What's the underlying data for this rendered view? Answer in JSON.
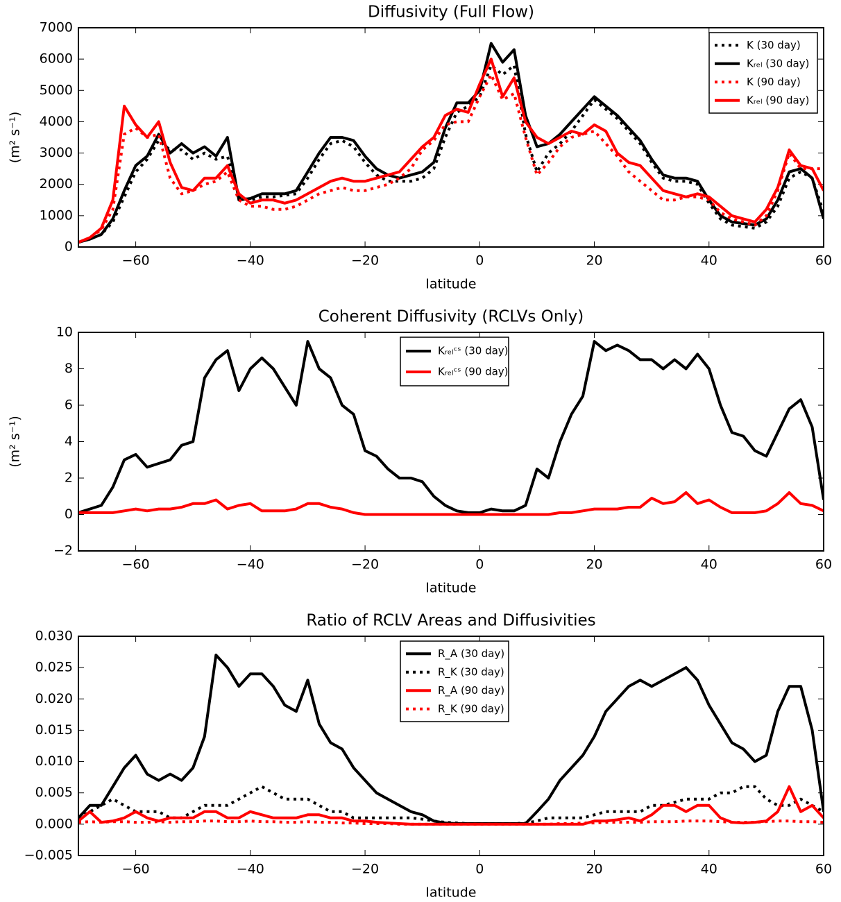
{
  "chart_data": [
    {
      "type": "line",
      "title": "Diffusivity (Full Flow)",
      "xlabel": "latitude",
      "ylabel": "(m² s⁻¹)",
      "legend": "upper right",
      "xlim": [
        -70,
        60
      ],
      "xticks": [
        {
          "value": -60,
          "label": "−60"
        },
        {
          "value": -40,
          "label": "−40"
        },
        {
          "value": -20,
          "label": "−20"
        },
        0,
        20,
        40,
        60
      ],
      "ylim": [
        0,
        7000
      ],
      "yticks": [
        0,
        1000,
        2000,
        3000,
        4000,
        5000,
        6000,
        7000
      ],
      "x": [
        -70,
        -68,
        -66,
        -64,
        -62,
        -60,
        -58,
        -56,
        -54,
        -52,
        -50,
        -48,
        -46,
        -44,
        -42,
        -40,
        -38,
        -36,
        -34,
        -32,
        -30,
        -28,
        -26,
        -24,
        -22,
        -20,
        -18,
        -16,
        -14,
        -12,
        -10,
        -8,
        -6,
        -4,
        -2,
        0,
        2,
        4,
        6,
        8,
        10,
        12,
        14,
        16,
        18,
        20,
        22,
        24,
        26,
        28,
        30,
        32,
        34,
        36,
        38,
        40,
        42,
        44,
        46,
        48,
        50,
        52,
        54,
        56,
        58,
        60
      ],
      "series": [
        {
          "name": "K (30 day)",
          "color": "#000000",
          "linestyle": "dotted",
          "values": [
            150,
            250,
            400,
            800,
            1600,
            2400,
            2800,
            3400,
            3100,
            3100,
            2800,
            3000,
            2800,
            2900,
            1600,
            1500,
            1600,
            1600,
            1650,
            1700,
            2200,
            2800,
            3300,
            3400,
            3200,
            2700,
            2300,
            2100,
            2100,
            2100,
            2200,
            2500,
            3500,
            4300,
            4500,
            4800,
            5800,
            5500,
            5800,
            3600,
            2400,
            3000,
            3300,
            3700,
            4200,
            4700,
            4400,
            4100,
            3700,
            3300,
            2700,
            2200,
            2100,
            2100,
            2000,
            1400,
            900,
            700,
            650,
            600,
            800,
            1300,
            2200,
            2400,
            2200,
            1100
          ]
        },
        {
          "name": "Kᵣₑₗ (30 day)",
          "color": "#000000",
          "linestyle": "solid",
          "values": [
            150,
            250,
            400,
            900,
            1800,
            2600,
            2900,
            3600,
            3000,
            3300,
            3000,
            3200,
            2900,
            3500,
            1500,
            1550,
            1700,
            1700,
            1700,
            1800,
            2400,
            3000,
            3500,
            3500,
            3400,
            2900,
            2500,
            2300,
            2200,
            2300,
            2400,
            2700,
            3800,
            4600,
            4600,
            5000,
            6500,
            5900,
            6300,
            4200,
            3200,
            3300,
            3600,
            4000,
            4400,
            4800,
            4500,
            4200,
            3800,
            3400,
            2800,
            2300,
            2200,
            2200,
            2100,
            1500,
            1000,
            800,
            750,
            700,
            900,
            1500,
            2400,
            2500,
            2200,
            900
          ]
        },
        {
          "name": "K (90 day)",
          "color": "#ff0000",
          "linestyle": "dotted",
          "values": [
            150,
            300,
            550,
            1200,
            3600,
            3800,
            3500,
            3600,
            2200,
            1700,
            1800,
            2000,
            2100,
            2400,
            1500,
            1300,
            1300,
            1200,
            1200,
            1300,
            1500,
            1700,
            1800,
            1900,
            1800,
            1800,
            1900,
            2000,
            2200,
            2500,
            3100,
            3400,
            3900,
            4000,
            4000,
            4800,
            5500,
            4700,
            4900,
            3500,
            2300,
            2700,
            3200,
            3500,
            3600,
            3700,
            3300,
            2900,
            2400,
            2100,
            1800,
            1500,
            1500,
            1600,
            1600,
            1500,
            1100,
            900,
            800,
            700,
            1000,
            1800,
            3000,
            2500,
            2500,
            2500
          ]
        },
        {
          "name": "Kᵣₑₗ (90 day)",
          "color": "#ff0000",
          "linestyle": "solid",
          "values": [
            150,
            300,
            600,
            1500,
            4500,
            3900,
            3500,
            4000,
            2700,
            1900,
            1800,
            2200,
            2200,
            2600,
            1700,
            1400,
            1500,
            1500,
            1400,
            1500,
            1700,
            1900,
            2100,
            2200,
            2100,
            2100,
            2200,
            2300,
            2400,
            2800,
            3200,
            3500,
            4200,
            4400,
            4300,
            5200,
            6000,
            4800,
            5400,
            4000,
            3500,
            3300,
            3500,
            3700,
            3600,
            3900,
            3700,
            3000,
            2700,
            2600,
            2200,
            1800,
            1700,
            1600,
            1700,
            1600,
            1300,
            1000,
            900,
            800,
            1200,
            1900,
            3100,
            2600,
            2500,
            1800
          ]
        }
      ]
    },
    {
      "type": "line",
      "title": "Coherent Diffusivity (RCLVs Only)",
      "xlabel": "latitude",
      "ylabel": "(m² s⁻¹)",
      "legend": "upper center",
      "xlim": [
        -70,
        60
      ],
      "xticks": [
        {
          "value": -60,
          "label": "−60"
        },
        {
          "value": -40,
          "label": "−40"
        },
        {
          "value": -20,
          "label": "−20"
        },
        0,
        20,
        40,
        60
      ],
      "ylim": [
        -2,
        10
      ],
      "yticks": [
        {
          "value": -2,
          "label": "−2"
        },
        0,
        2,
        4,
        6,
        8,
        10
      ],
      "x": [
        -70,
        -68,
        -66,
        -64,
        -62,
        -60,
        -58,
        -56,
        -54,
        -52,
        -50,
        -48,
        -46,
        -44,
        -42,
        -40,
        -38,
        -36,
        -34,
        -32,
        -30,
        -28,
        -26,
        -24,
        -22,
        -20,
        -18,
        -16,
        -14,
        -12,
        -10,
        -8,
        -6,
        -4,
        -2,
        0,
        2,
        4,
        6,
        8,
        10,
        12,
        14,
        16,
        18,
        20,
        22,
        24,
        26,
        28,
        30,
        32,
        34,
        36,
        38,
        40,
        42,
        44,
        46,
        48,
        50,
        52,
        54,
        56,
        58,
        60
      ],
      "series": [
        {
          "name": "Kᵣₑₗᶜˢ (30 day)",
          "color": "#000000",
          "linestyle": "solid",
          "values": [
            0.1,
            0.3,
            0.5,
            1.5,
            3.0,
            3.3,
            2.6,
            2.8,
            3.0,
            3.8,
            4.0,
            7.5,
            8.5,
            9.0,
            6.8,
            8.0,
            8.6,
            8.0,
            7.0,
            6.0,
            9.5,
            8.0,
            7.5,
            6.0,
            5.5,
            3.5,
            3.2,
            2.5,
            2.0,
            2.0,
            1.8,
            1.0,
            0.5,
            0.2,
            0.1,
            0.1,
            0.3,
            0.2,
            0.2,
            0.5,
            2.5,
            2.0,
            4.0,
            5.5,
            6.5,
            9.5,
            9.0,
            9.3,
            9.0,
            8.5,
            8.5,
            8.0,
            8.5,
            8.0,
            8.8,
            8.0,
            6.0,
            4.5,
            4.3,
            3.5,
            3.2,
            4.5,
            5.8,
            6.3,
            4.8,
            0.8
          ]
        },
        {
          "name": "Kᵣₑₗᶜˢ (90 day)",
          "color": "#ff0000",
          "linestyle": "solid",
          "values": [
            0.1,
            0.1,
            0.1,
            0.1,
            0.2,
            0.3,
            0.2,
            0.3,
            0.3,
            0.4,
            0.6,
            0.6,
            0.8,
            0.3,
            0.5,
            0.6,
            0.2,
            0.2,
            0.2,
            0.3,
            0.6,
            0.6,
            0.4,
            0.3,
            0.1,
            0,
            0,
            0,
            0,
            0,
            0,
            0,
            0,
            0,
            0,
            0,
            0,
            0,
            0,
            0,
            0,
            0,
            0.1,
            0.1,
            0.2,
            0.3,
            0.3,
            0.3,
            0.4,
            0.4,
            0.9,
            0.6,
            0.7,
            1.2,
            0.6,
            0.8,
            0.4,
            0.1,
            0.1,
            0.1,
            0.2,
            0.6,
            1.2,
            0.6,
            0.5,
            0.2
          ]
        }
      ]
    },
    {
      "type": "line",
      "title": "Ratio of RCLV Areas and Diffusivities",
      "xlabel": "latitude",
      "legend": "upper center",
      "xlim": [
        -70,
        60
      ],
      "xticks": [
        {
          "value": -60,
          "label": "−60"
        },
        {
          "value": -40,
          "label": "−40"
        },
        {
          "value": -20,
          "label": "−20"
        },
        0,
        20,
        40,
        60
      ],
      "ylim": [
        -0.005,
        0.03
      ],
      "yticks": [
        {
          "value": -0.005,
          "label": "−0.005"
        },
        {
          "value": 0,
          "label": "0.000"
        },
        {
          "value": 0.005,
          "label": "0.005"
        },
        {
          "value": 0.01,
          "label": "0.010"
        },
        {
          "value": 0.015,
          "label": "0.015"
        },
        {
          "value": 0.02,
          "label": "0.020"
        },
        {
          "value": 0.025,
          "label": "0.025"
        },
        {
          "value": 0.03,
          "label": "0.030"
        }
      ],
      "x": [
        -70,
        -68,
        -66,
        -64,
        -62,
        -60,
        -58,
        -56,
        -54,
        -52,
        -50,
        -48,
        -46,
        -44,
        -42,
        -40,
        -38,
        -36,
        -34,
        -32,
        -30,
        -28,
        -26,
        -24,
        -22,
        -20,
        -18,
        -16,
        -14,
        -12,
        -10,
        -8,
        -6,
        -4,
        -2,
        0,
        2,
        4,
        6,
        8,
        10,
        12,
        14,
        16,
        18,
        20,
        22,
        24,
        26,
        28,
        30,
        32,
        34,
        36,
        38,
        40,
        42,
        44,
        46,
        48,
        50,
        52,
        54,
        56,
        58,
        60
      ],
      "series": [
        {
          "name": "R_A (30 day)",
          "color": "#000000",
          "linestyle": "solid",
          "values": [
            0.001,
            0.003,
            0.003,
            0.006,
            0.009,
            0.011,
            0.008,
            0.007,
            0.008,
            0.007,
            0.009,
            0.014,
            0.027,
            0.025,
            0.022,
            0.024,
            0.024,
            0.022,
            0.019,
            0.018,
            0.023,
            0.016,
            0.013,
            0.012,
            0.009,
            0.007,
            0.005,
            0.004,
            0.003,
            0.002,
            0.0015,
            0.0005,
            0.0002,
            0.0001,
            0.0001,
            0.0001,
            0.0001,
            0.0001,
            0.0001,
            0.0001,
            0.002,
            0.004,
            0.007,
            0.009,
            0.011,
            0.014,
            0.018,
            0.02,
            0.022,
            0.023,
            0.022,
            0.023,
            0.024,
            0.025,
            0.023,
            0.019,
            0.016,
            0.013,
            0.012,
            0.01,
            0.011,
            0.018,
            0.022,
            0.022,
            0.015,
            0.002
          ]
        },
        {
          "name": "R_K (30 day)",
          "color": "#000000",
          "linestyle": "dotted",
          "values": [
            0.001,
            0.002,
            0.003,
            0.004,
            0.003,
            0.002,
            0.002,
            0.002,
            0.001,
            0.001,
            0.002,
            0.003,
            0.003,
            0.003,
            0.004,
            0.005,
            0.006,
            0.005,
            0.004,
            0.004,
            0.004,
            0.003,
            0.002,
            0.002,
            0.001,
            0.001,
            0.001,
            0.001,
            0.001,
            0.001,
            0.0008,
            0.0005,
            0.0003,
            0.0002,
            0.0001,
            0.0001,
            0.0001,
            0.0001,
            0.0001,
            0.0002,
            0.0005,
            0.001,
            0.001,
            0.001,
            0.001,
            0.0015,
            0.002,
            0.002,
            0.002,
            0.002,
            0.003,
            0.003,
            0.0035,
            0.004,
            0.004,
            0.004,
            0.005,
            0.005,
            0.006,
            0.006,
            0.004,
            0.003,
            0.003,
            0.004,
            0.003,
            0.002
          ]
        },
        {
          "name": "R_A (90 day)",
          "color": "#ff0000",
          "linestyle": "solid",
          "values": [
            0.0005,
            0.002,
            0.0003,
            0.0005,
            0.001,
            0.002,
            0.001,
            0.0005,
            0.001,
            0.001,
            0.001,
            0.002,
            0.002,
            0.001,
            0.001,
            0.002,
            0.0015,
            0.001,
            0.001,
            0.001,
            0.0015,
            0.0015,
            0.001,
            0.001,
            0.0005,
            0.0005,
            0.0003,
            0.0002,
            0.0001,
            0,
            0,
            0,
            0,
            0,
            0,
            0,
            0,
            0,
            0,
            0,
            0,
            0,
            0,
            0,
            0,
            0.0005,
            0.0005,
            0.0007,
            0.001,
            0.0005,
            0.0015,
            0.003,
            0.003,
            0.002,
            0.003,
            0.003,
            0.001,
            0.0003,
            0.0002,
            0.0003,
            0.0005,
            0.002,
            0.006,
            0.002,
            0.003,
            0.001
          ]
        },
        {
          "name": "R_K (90 day)",
          "color": "#ff0000",
          "linestyle": "dotted",
          "values": [
            0.0003,
            0.0004,
            0.0003,
            0.0004,
            0.0004,
            0.0003,
            0.0003,
            0.0004,
            0.0003,
            0.0004,
            0.0004,
            0.0005,
            0.0005,
            0.0004,
            0.0004,
            0.0005,
            0.0004,
            0.0004,
            0.0003,
            0.0003,
            0.0004,
            0.0003,
            0.0003,
            0.0002,
            0.0002,
            0.0001,
            0.0001,
            0.0001,
            0,
            0,
            0,
            0,
            0,
            0,
            0,
            0,
            0,
            0,
            0,
            0,
            0,
            0,
            0.0001,
            0.0001,
            0.0002,
            0.0002,
            0.0003,
            0.0003,
            0.0003,
            0.0003,
            0.0004,
            0.0004,
            0.0004,
            0.0005,
            0.0005,
            0.0005,
            0.0004,
            0.0003,
            0.0003,
            0.0003,
            0.0004,
            0.0005,
            0.0005,
            0.0004,
            0.0004,
            0.0003
          ]
        }
      ]
    }
  ]
}
